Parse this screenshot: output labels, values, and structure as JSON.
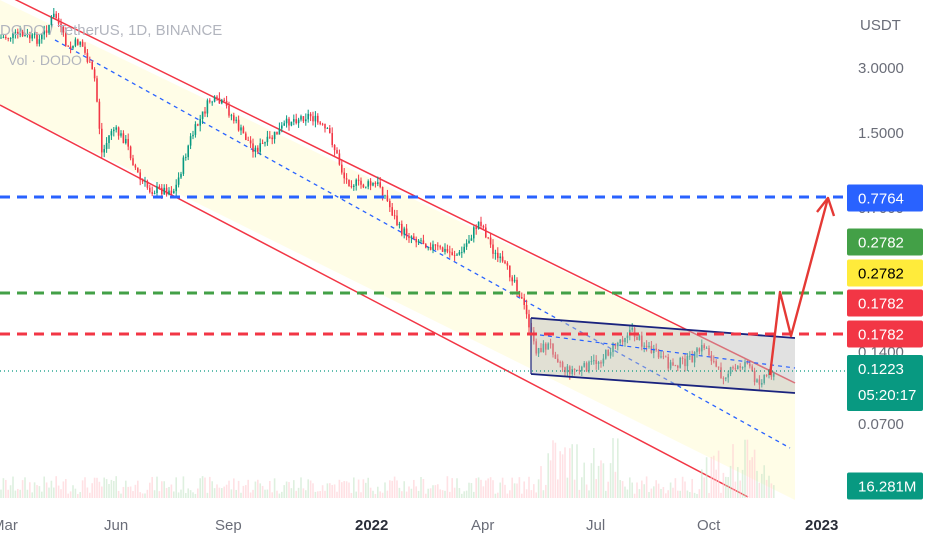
{
  "header": {
    "symbol_line": "DODO / TetherUS, 1D, BINANCE",
    "volume_line": "Vol · DODO"
  },
  "chart_data": {
    "type": "candlestick",
    "title": "",
    "y_axis": {
      "unit": "USDT",
      "scale": "log",
      "ticks": [
        "3.0000",
        "1.5000",
        "0.7000",
        "0.1400",
        "0.0700"
      ]
    },
    "x_axis": {
      "ticks": [
        {
          "label": "Mar",
          "bold": false
        },
        {
          "label": "Jun",
          "bold": false
        },
        {
          "label": "Sep",
          "bold": false
        },
        {
          "label": "2022",
          "bold": true
        },
        {
          "label": "Apr",
          "bold": false
        },
        {
          "label": "Jul",
          "bold": false
        },
        {
          "label": "Oct",
          "bold": false
        },
        {
          "label": "2023",
          "bold": true
        }
      ]
    },
    "price_tags": [
      {
        "label": "0.7764",
        "bg": "#2962ff",
        "fg": "#ffffff"
      },
      {
        "label": "0.2782",
        "bg": "#43a047",
        "fg": "#ffffff"
      },
      {
        "label": "0.2782",
        "bg": "#ffeb3b",
        "fg": "#000000"
      },
      {
        "label": "0.1782",
        "bg": "#f23645",
        "fg": "#ffffff"
      },
      {
        "label": "0.1782",
        "bg": "#f23645",
        "fg": "#ffffff"
      },
      {
        "label": "0.1223",
        "sub": "05:20:17",
        "bg": "#089981",
        "fg": "#ffffff"
      },
      {
        "label": "16.281M",
        "bg": "#089981",
        "fg": "#ffffff"
      }
    ],
    "horizontal_levels": [
      {
        "price": 0.7764,
        "color": "#2962ff",
        "style": "dashed"
      },
      {
        "price": 0.2782,
        "color": "#43a047",
        "style": "dashed"
      },
      {
        "price": 0.1782,
        "color": "#f23645",
        "style": "dashed"
      },
      {
        "price": 0.1223,
        "color": "#089981",
        "style": "dotted"
      }
    ],
    "colors": {
      "up": "#089981",
      "down": "#f23645",
      "channel_fill": "#fffde7",
      "channel_line": "#f23645",
      "box_line": "#1a237e",
      "midline": "#2962ff"
    }
  }
}
